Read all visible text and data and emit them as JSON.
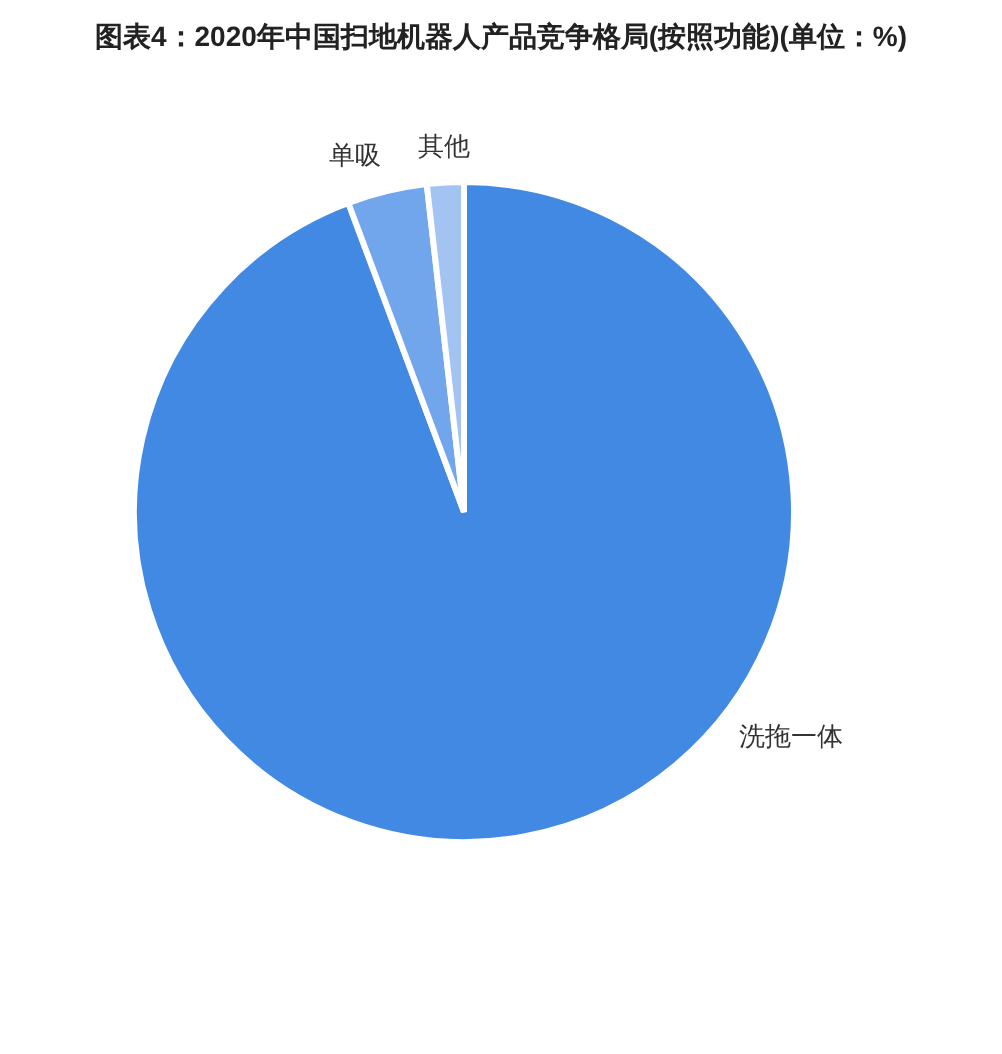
{
  "chart_data": {
    "type": "pie",
    "title": "图表4：2020年中国扫地机器人产品竞争格局(按照功能)(单位：%)",
    "categories": [
      "洗拖一体",
      "单吸",
      "其他"
    ],
    "values": [
      94.3,
      3.9,
      1.8
    ],
    "colors": [
      "#4189e3",
      "#72a6ec",
      "#a3c4f2"
    ]
  }
}
